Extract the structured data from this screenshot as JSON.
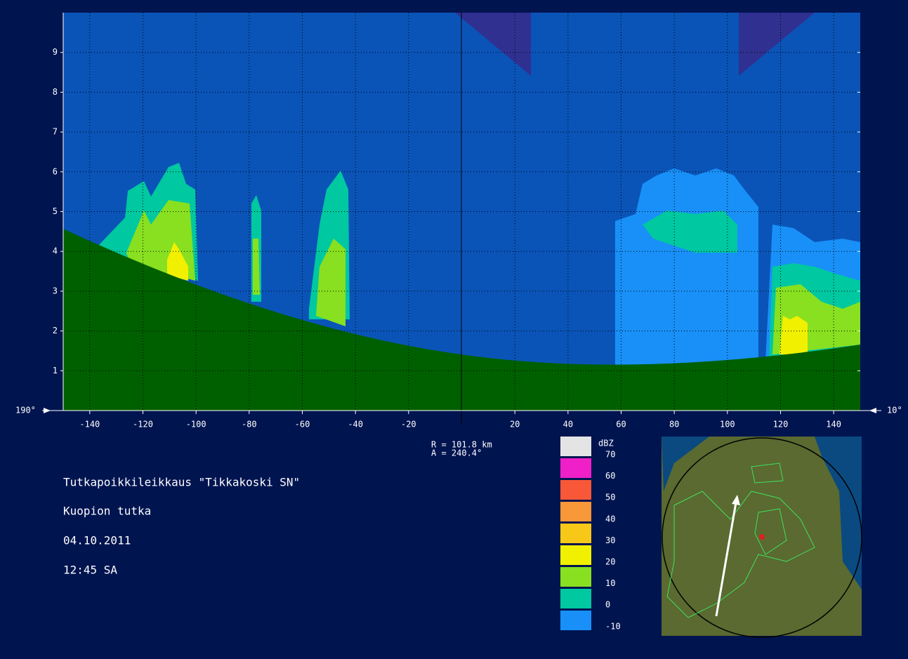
{
  "chart_data": {
    "type": "cross-section",
    "xlim": [
      -150,
      150
    ],
    "ylim": [
      0,
      10
    ],
    "xticks": [
      -140,
      -120,
      -100,
      -80,
      -60,
      -40,
      -20,
      20,
      40,
      60,
      80,
      100,
      120,
      140
    ],
    "yticks": [
      1,
      2,
      3,
      4,
      5,
      6,
      7,
      8,
      9
    ],
    "grid": true,
    "left_direction": "190°",
    "right_direction": "10°",
    "range_label": "R = 101.8 km",
    "azimuth_label": "A = 240.4°",
    "info": [
      "Tutkapoikkileikkaus \"Tikkakoski SN\"",
      "Kuopion tutka",
      "04.10.2011",
      "12:45 SA"
    ],
    "colorbar": {
      "unit": "dBZ",
      "levels": [
        70,
        60,
        50,
        40,
        30,
        20,
        10,
        0,
        -10
      ],
      "colors": [
        "#e4e4e4",
        "#f020c8",
        "#f85838",
        "#f89838",
        "#f8c818",
        "#f0f000",
        "#88e020",
        "#00c8a0",
        "#1890f8"
      ]
    }
  }
}
